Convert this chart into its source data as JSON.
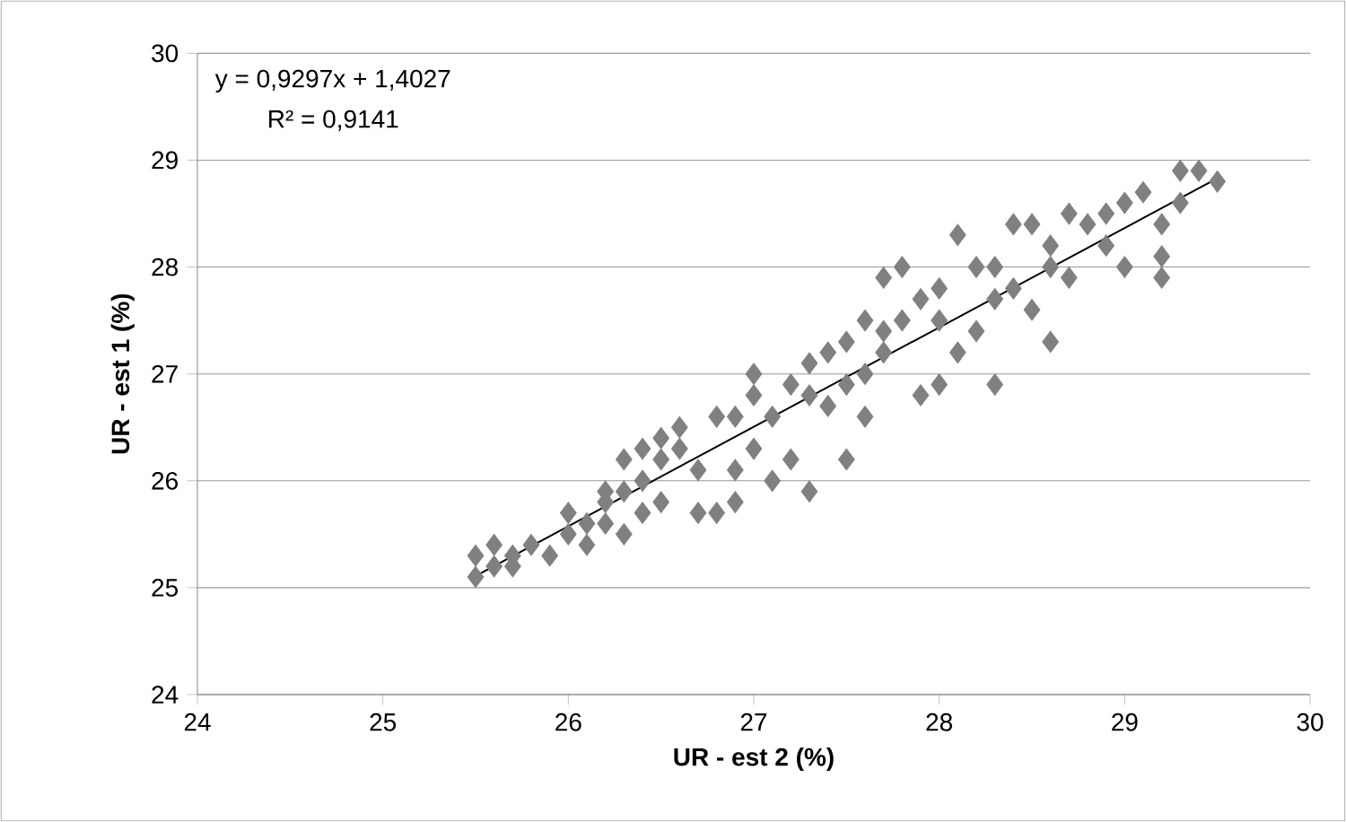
{
  "chart_data": {
    "type": "scatter",
    "xlabel": "UR - est 2 (%)",
    "ylabel": "UR - est 1 (%)",
    "xlim": [
      24,
      30
    ],
    "ylim": [
      24,
      30
    ],
    "xticks": [
      24,
      25,
      26,
      27,
      28,
      29,
      30
    ],
    "yticks": [
      24,
      25,
      26,
      27,
      28,
      29,
      30
    ],
    "grid": "y",
    "marker": "diamond",
    "annotations": [
      "y = 0,9297x + 1,4027",
      "R² = 0,9141"
    ],
    "series": [
      {
        "color": "#808080",
        "x": [
          25.5,
          25.5,
          25.6,
          25.7,
          25.8,
          25.6,
          25.9,
          26.0,
          26.1,
          26.2,
          26.3,
          26.2,
          26.3,
          26.4,
          26.5,
          26.4,
          26.6,
          26.7,
          26.8,
          26.7,
          26.9,
          26.8,
          27.0,
          27.0,
          27.1,
          27.2,
          27.3,
          27.2,
          27.4,
          27.5,
          27.4,
          27.3,
          27.5,
          27.6,
          27.7,
          27.8,
          27.6,
          27.7,
          27.9,
          28.0,
          28.1,
          28.0,
          28.1,
          28.2,
          28.3,
          28.3,
          28.4,
          28.5,
          28.5,
          28.6,
          28.7,
          28.6,
          28.7,
          28.9,
          29.0,
          29.0,
          29.1,
          29.2,
          29.2,
          29.3,
          29.4,
          29.5,
          29.3,
          28.8,
          26.0,
          26.5,
          27.0,
          27.6,
          28.4,
          27.9,
          28.2,
          26.9,
          26.6,
          26.2,
          26.5,
          27.1,
          27.8,
          28.3,
          28.6,
          26.1,
          26.4,
          26.9,
          27.3,
          27.7,
          28.9,
          29.2,
          25.7,
          26.3,
          27.5,
          28.0
        ],
        "values": [
          25.1,
          25.3,
          25.2,
          25.3,
          25.4,
          25.4,
          25.3,
          25.5,
          25.4,
          25.6,
          25.5,
          25.9,
          26.2,
          26.0,
          26.4,
          25.7,
          26.5,
          26.1,
          25.7,
          25.7,
          25.8,
          26.6,
          26.8,
          26.3,
          26.0,
          26.9,
          27.1,
          26.2,
          27.2,
          27.3,
          26.7,
          25.9,
          26.2,
          27.5,
          27.9,
          28.0,
          26.6,
          27.2,
          27.7,
          27.8,
          28.3,
          26.9,
          27.2,
          27.4,
          26.9,
          28.0,
          28.4,
          28.4,
          27.6,
          27.3,
          28.5,
          28.0,
          27.9,
          28.2,
          28.0,
          28.6,
          28.7,
          28.1,
          27.9,
          28.9,
          28.9,
          28.8,
          28.6,
          28.4,
          25.7,
          25.8,
          27.0,
          27.0,
          27.8,
          26.8,
          28.0,
          26.1,
          26.3,
          25.8,
          26.2,
          26.6,
          27.5,
          27.7,
          28.2,
          25.6,
          26.3,
          26.6,
          26.8,
          27.4,
          28.5,
          28.4,
          25.2,
          25.9,
          26.9,
          27.5
        ]
      },
      {
        "type": "line",
        "color": "#000000",
        "x": [
          25.5,
          29.5
        ],
        "values": [
          25.11,
          28.83
        ],
        "marker": "none",
        "line_style": "solid"
      }
    ]
  }
}
